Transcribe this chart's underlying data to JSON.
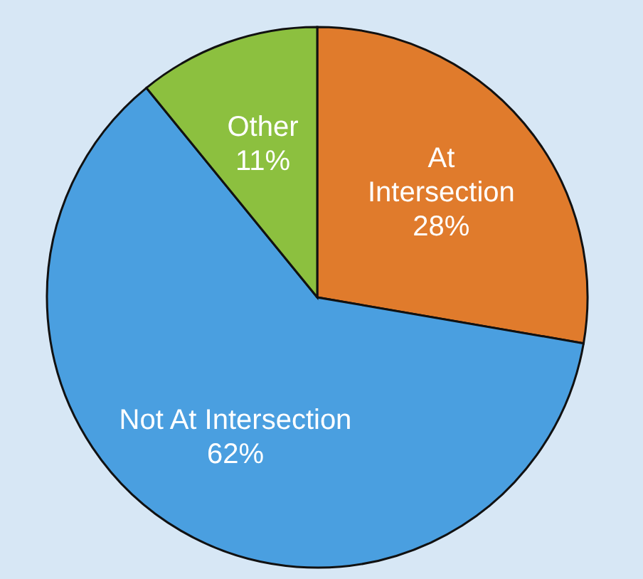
{
  "chart_data": {
    "type": "pie",
    "categories": [
      "At Intersection",
      "Not At Intersection",
      "Other"
    ],
    "values": [
      28,
      62,
      11
    ],
    "colors": [
      "#e07b2c",
      "#4a9fe0",
      "#8cc03f"
    ],
    "value_labels": [
      "28%",
      "62%",
      "11%"
    ],
    "legend": false
  }
}
